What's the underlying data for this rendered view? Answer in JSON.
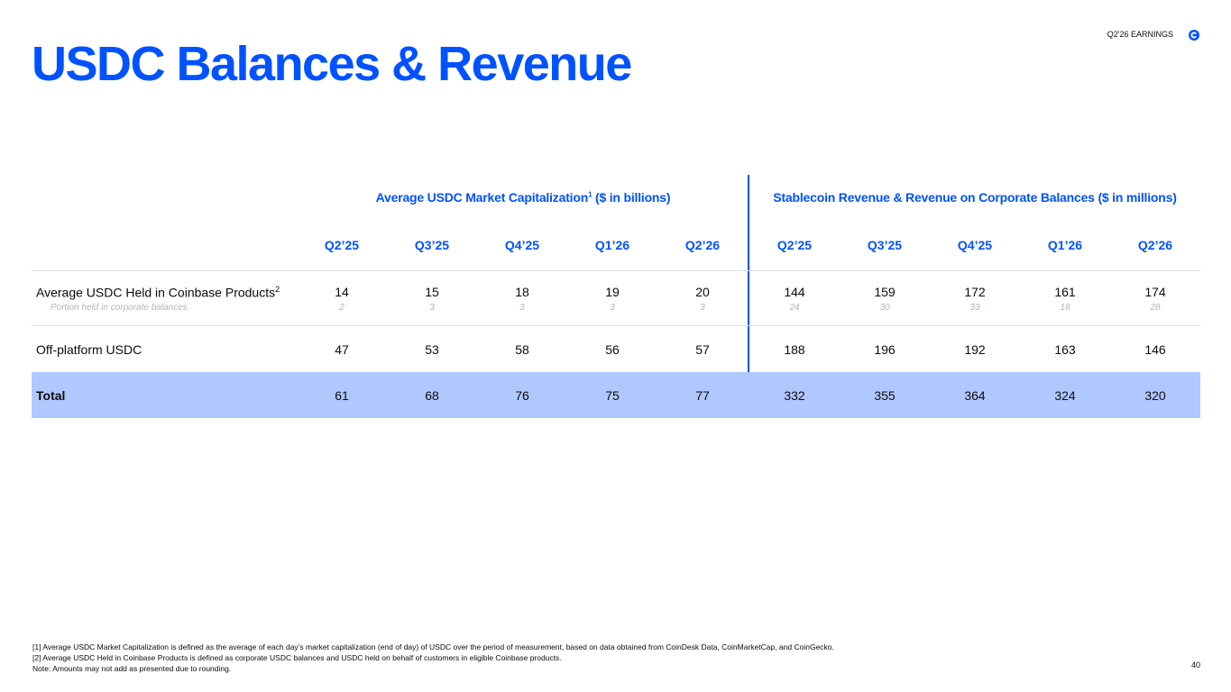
{
  "header": {
    "title": "USDC Balances & Revenue",
    "tag": "Q2'26 EARNINGS",
    "logo_icon": "coinbase-logo-icon"
  },
  "groups": {
    "market_cap": {
      "label": "Average USDC Market Capitalization",
      "sup": "1",
      "suffix": " ($ in billions)"
    },
    "revenue": {
      "label": "Stablecoin Revenue & Revenue on Corporate Balances ($ in millions)"
    }
  },
  "columns": [
    "Q2’25",
    "Q3’25",
    "Q4’25",
    "Q1’26",
    "Q2’26",
    "Q2’25",
    "Q3’25",
    "Q4’25",
    "Q1’26",
    "Q2’26"
  ],
  "rows": [
    {
      "label": "Average USDC Held in Coinbase Products",
      "sup": "2",
      "values": [
        "14",
        "15",
        "18",
        "19",
        "20",
        "144",
        "159",
        "172",
        "161",
        "174"
      ],
      "sub_label": "Portion held in corporate balances",
      "sub_values": [
        "2",
        "3",
        "3",
        "3",
        "3",
        "24",
        "30",
        "33",
        "18",
        "28"
      ]
    },
    {
      "label": "Off-platform USDC",
      "values": [
        "47",
        "53",
        "58",
        "56",
        "57",
        "188",
        "196",
        "192",
        "163",
        "146"
      ]
    },
    {
      "label": "Total",
      "values": [
        "61",
        "68",
        "76",
        "75",
        "77",
        "332",
        "355",
        "364",
        "324",
        "320"
      ]
    }
  ],
  "footnotes": [
    "[1] Average USDC Market Capitalization is defined as the average of each day’s market capitalization (end of day) of USDC over the period of measurement, based on data obtained from CoinDesk Data, CoinMarketCap, and CoinGecko.",
    "[2] Average USDC Held in Coinbase Products is defined as corporate USDC balances and USDC held on behalf of customers in eligible Coinbase products.",
    "Note: Amounts may not add as presented due to rounding."
  ],
  "page_number": "40",
  "colors": {
    "accent": "#0052ff",
    "total_row": "#b1c8ff",
    "muted": "#b0b5bd"
  }
}
